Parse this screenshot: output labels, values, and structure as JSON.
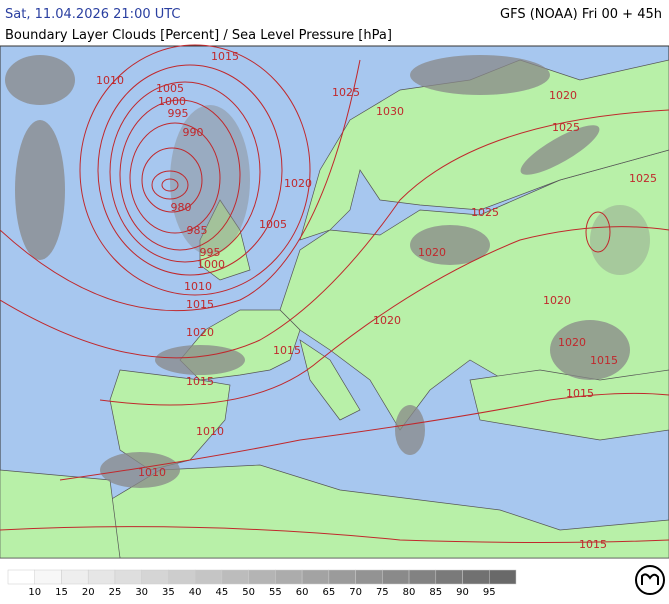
{
  "header": {
    "title": "Sat, 11.04.2026 21:00 UTC",
    "model": "GFS (NOAA) Fri 00 + 45h",
    "subtitle": "Boundary Layer Clouds [Percent] / Sea Level Pressure [hPa]"
  },
  "isobar_labels": [
    "1015",
    "1010",
    "1005",
    "1000",
    "995",
    "990",
    "980",
    "985",
    "995",
    "1000",
    "1010",
    "1015",
    "1020",
    "1005",
    "1020",
    "1025",
    "1030",
    "1020",
    "1025",
    "1025",
    "1025",
    "1020",
    "1020",
    "1020",
    "1020",
    "1015",
    "1015",
    "1015",
    "1015",
    "1010",
    "1010",
    "1015"
  ],
  "colorbar": {
    "labels": [
      10,
      15,
      20,
      25,
      30,
      35,
      40,
      45,
      50,
      55,
      60,
      65,
      70,
      75,
      80,
      85,
      90,
      95
    ]
  }
}
